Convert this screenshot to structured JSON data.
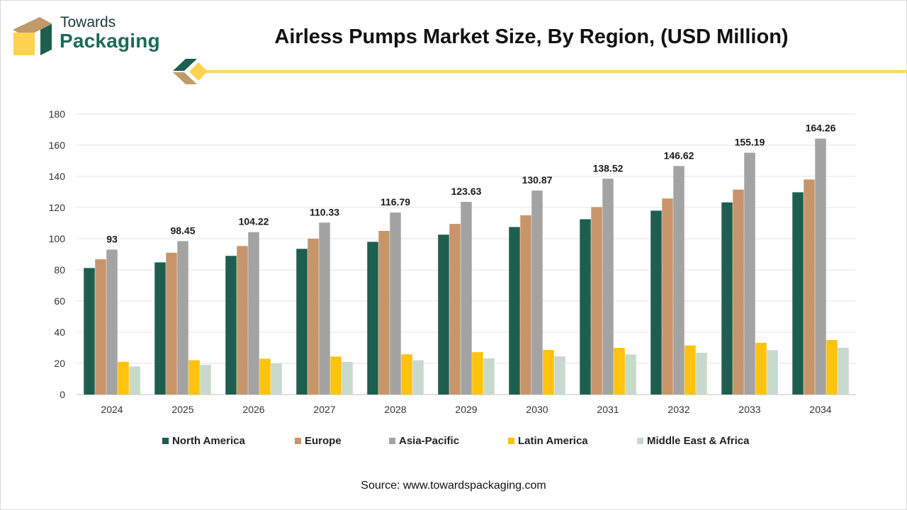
{
  "brand": {
    "line1": "Towards",
    "line2": "Packaging"
  },
  "colors": {
    "north_america": "#1d5e4f",
    "europe": "#c8956a",
    "asia_pacific": "#a3a3a3",
    "latin_america": "#ffc20e",
    "middle_east_africa": "#c7d9cc",
    "accent_line": "#f7d774"
  },
  "source": "Source: www.towardspackaging.com",
  "chart_data": {
    "type": "bar",
    "title": "Airless Pumps Market Size, By Region, (USD Million)",
    "categories": [
      "2024",
      "2025",
      "2026",
      "2027",
      "2028",
      "2029",
      "2030",
      "2031",
      "2032",
      "2033",
      "2034"
    ],
    "series": [
      {
        "name": "North America",
        "values": [
          81.2,
          84.8,
          89.0,
          93.5,
          98.0,
          102.6,
          107.5,
          112.5,
          118.0,
          123.3,
          129.8
        ]
      },
      {
        "name": "Europe",
        "values": [
          86.8,
          91.0,
          95.3,
          100.0,
          105.0,
          109.5,
          115.0,
          120.3,
          125.8,
          131.5,
          138.0
        ]
      },
      {
        "name": "Asia-Pacific",
        "values": [
          93,
          98.45,
          104.22,
          110.33,
          116.79,
          123.63,
          130.87,
          138.52,
          146.62,
          155.19,
          164.26
        ]
      },
      {
        "name": "Latin America",
        "values": [
          21.0,
          22.0,
          23.0,
          24.4,
          25.8,
          27.2,
          28.6,
          30.0,
          31.5,
          33.2,
          35.0
        ]
      },
      {
        "name": "Middle East & Africa",
        "values": [
          18.0,
          19.0,
          20.0,
          21.0,
          22.0,
          23.2,
          24.5,
          25.7,
          26.8,
          28.5,
          30.0
        ]
      }
    ],
    "data_labels": [
      "93",
      "98.45",
      "104.22",
      "110.33",
      "116.79",
      "123.63",
      "130.87",
      "138.52",
      "146.62",
      "155.19",
      "164.26"
    ],
    "y_ticks": [
      "0",
      "20",
      "40",
      "60",
      "80",
      "100",
      "120",
      "140",
      "160",
      "180"
    ],
    "ylim": [
      0,
      180
    ],
    "grid": true,
    "legend": "bottom"
  }
}
